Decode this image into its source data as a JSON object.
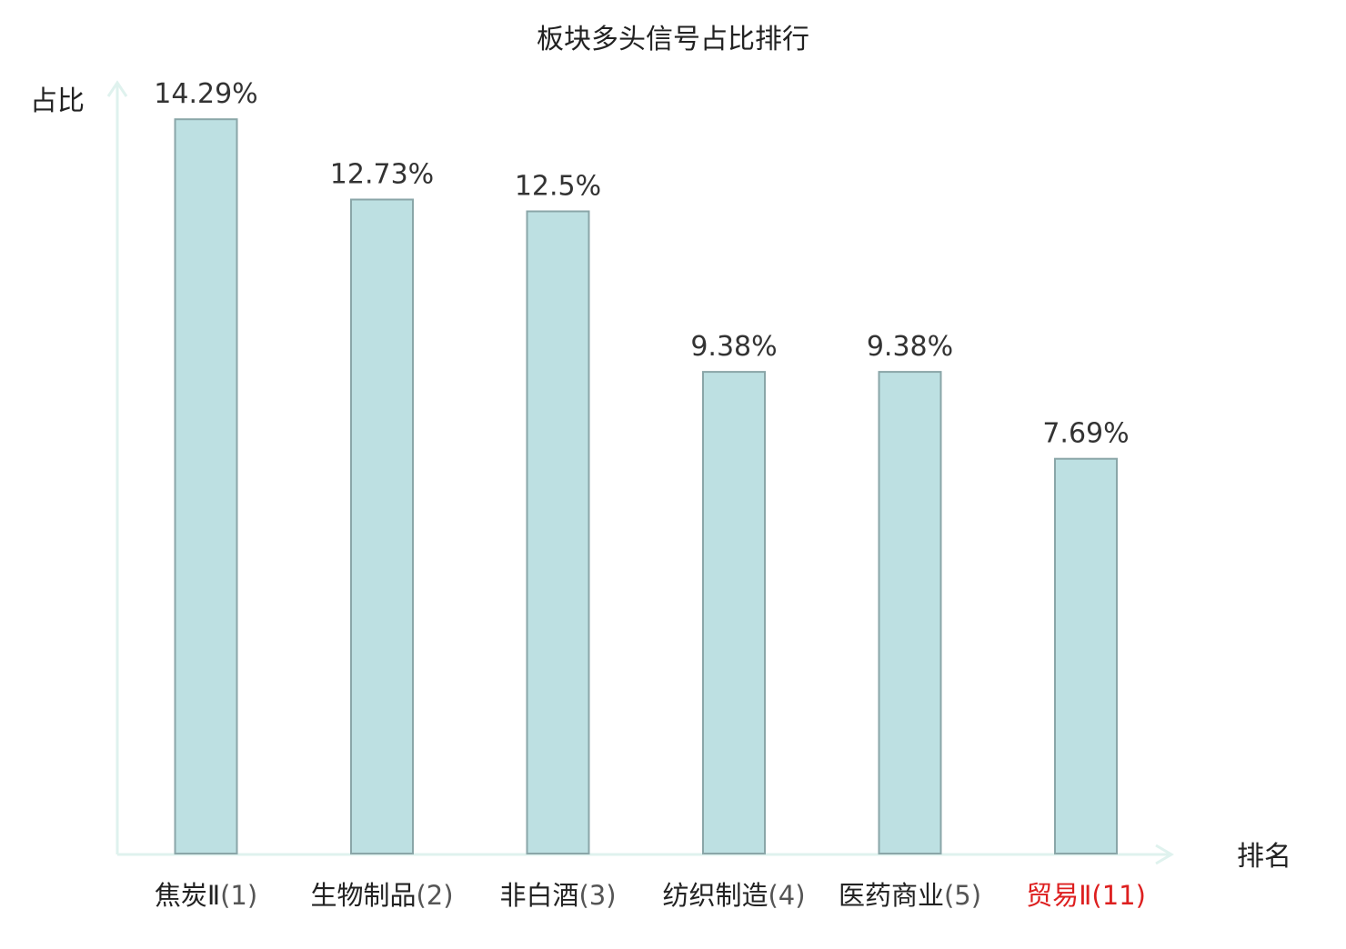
{
  "chart_data": {
    "type": "bar",
    "title": "板块多头信号占比排行",
    "xlabel": "排名",
    "ylabel": "占比",
    "categories": [
      "焦炭Ⅱ",
      "生物制品",
      "非白酒",
      "纺织制造",
      "医药商业",
      "贸易Ⅱ"
    ],
    "ranks": [
      "(1)",
      "(2)",
      "(3)",
      "(4)",
      "(5)",
      "(11)"
    ],
    "values": [
      14.29,
      12.73,
      12.5,
      9.38,
      9.38,
      7.69
    ],
    "value_labels": [
      "14.29%",
      "12.73%",
      "12.5%",
      "9.38%",
      "9.38%",
      "7.69%"
    ],
    "highlight": [
      false,
      false,
      false,
      false,
      false,
      true
    ],
    "ylim": [
      0,
      15.6
    ],
    "grid": false,
    "colors": {
      "bar_fill": "#bde0e2",
      "bar_stroke": "#8aa6a8",
      "axis": "#dff2ee",
      "text": "#222222",
      "value_text": "#333333",
      "rank_text": "#555555",
      "highlight": "#dd1f1f"
    }
  }
}
